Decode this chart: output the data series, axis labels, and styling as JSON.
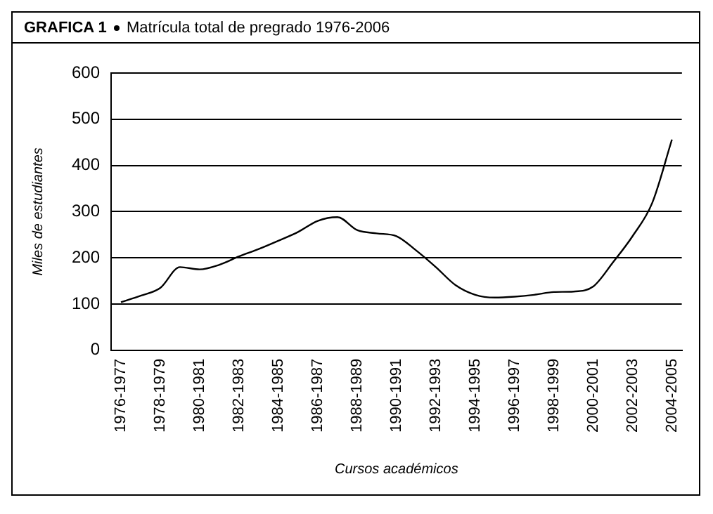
{
  "chart_data": {
    "type": "line",
    "title": "GRAFICA 1",
    "subtitle": "Matrícula total de pregrado 1976-2006",
    "xlabel": "Cursos académicos",
    "ylabel": "Miles de estudiantes",
    "categories": [
      "1976-1977",
      null,
      "1978-1979",
      null,
      "1980-1981",
      null,
      "1982-1983",
      null,
      "1984-1985",
      null,
      "1986-1987",
      null,
      "1988-1989",
      null,
      "1990-1991",
      null,
      "1992-1993",
      null,
      "1994-1995",
      null,
      "1996-1997",
      null,
      "1998-1999",
      null,
      "2000-2001",
      null,
      "2002-2003",
      null,
      "2004-2005"
    ],
    "series": [
      {
        "color": "#000000",
        "values": [
          104,
          118,
          135,
          180,
          175,
          185,
          203,
          219,
          237,
          256,
          280,
          288,
          260,
          253,
          247,
          216,
          180,
          141,
          120,
          114,
          116,
          120,
          126,
          127,
          138,
          190,
          247,
          319,
          456
        ]
      }
    ],
    "ylim": [
      0,
      600
    ],
    "yticks": [
      0,
      100,
      200,
      300,
      400,
      500,
      600
    ],
    "grid": "y",
    "legend": false,
    "marker": "none",
    "line_style": "solid"
  }
}
